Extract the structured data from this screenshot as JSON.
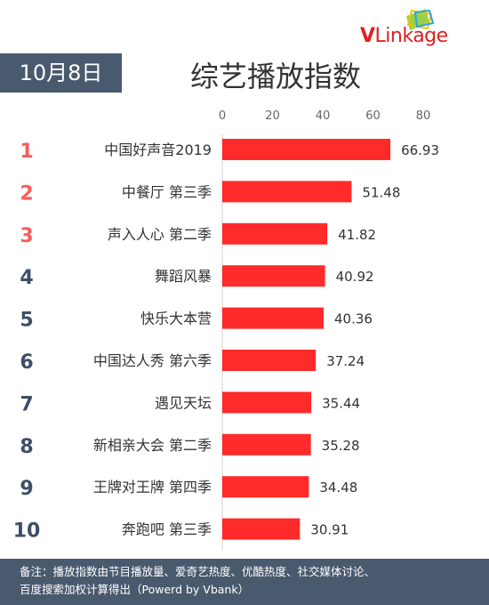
{
  "logo": {
    "text_v": "V",
    "text_rest": "Linkage"
  },
  "date": "10月8日",
  "title": "综艺播放指数",
  "footer": {
    "line1": "备注：播放指数由节目播放量、爱奇艺热度、优酷热度、社交媒体讨论、",
    "line2": "百度搜索加权计算得出（Powerd by Vbank）"
  },
  "colors": {
    "bar": "#ff2a2a",
    "rank_top": "#ff5a5a",
    "rank_other": "#3e4f66",
    "header_bg": "#4a5a6e"
  },
  "chart_data": {
    "type": "bar",
    "orientation": "horizontal",
    "xlim": [
      0,
      80
    ],
    "ticks": [
      0,
      20,
      40,
      60,
      80
    ],
    "categories": [
      "中国好声音2019",
      "中餐厅 第三季",
      "声入人心 第二季",
      "舞蹈风暴",
      "快乐大本营",
      "中国达人秀 第六季",
      "遇见天坛",
      "新相亲大会 第二季",
      "王牌对王牌 第四季",
      "奔跑吧 第三季"
    ],
    "values": [
      66.93,
      51.48,
      41.82,
      40.92,
      40.36,
      37.24,
      35.44,
      35.28,
      34.48,
      30.91
    ],
    "value_labels": [
      "66.93",
      "51.48",
      "41.82",
      "40.92",
      "40.36",
      "37.24",
      "35.44",
      "35.28",
      "34.48",
      "30.91"
    ],
    "ranks": [
      "1",
      "2",
      "3",
      "4",
      "5",
      "6",
      "7",
      "8",
      "9",
      "10"
    ]
  }
}
